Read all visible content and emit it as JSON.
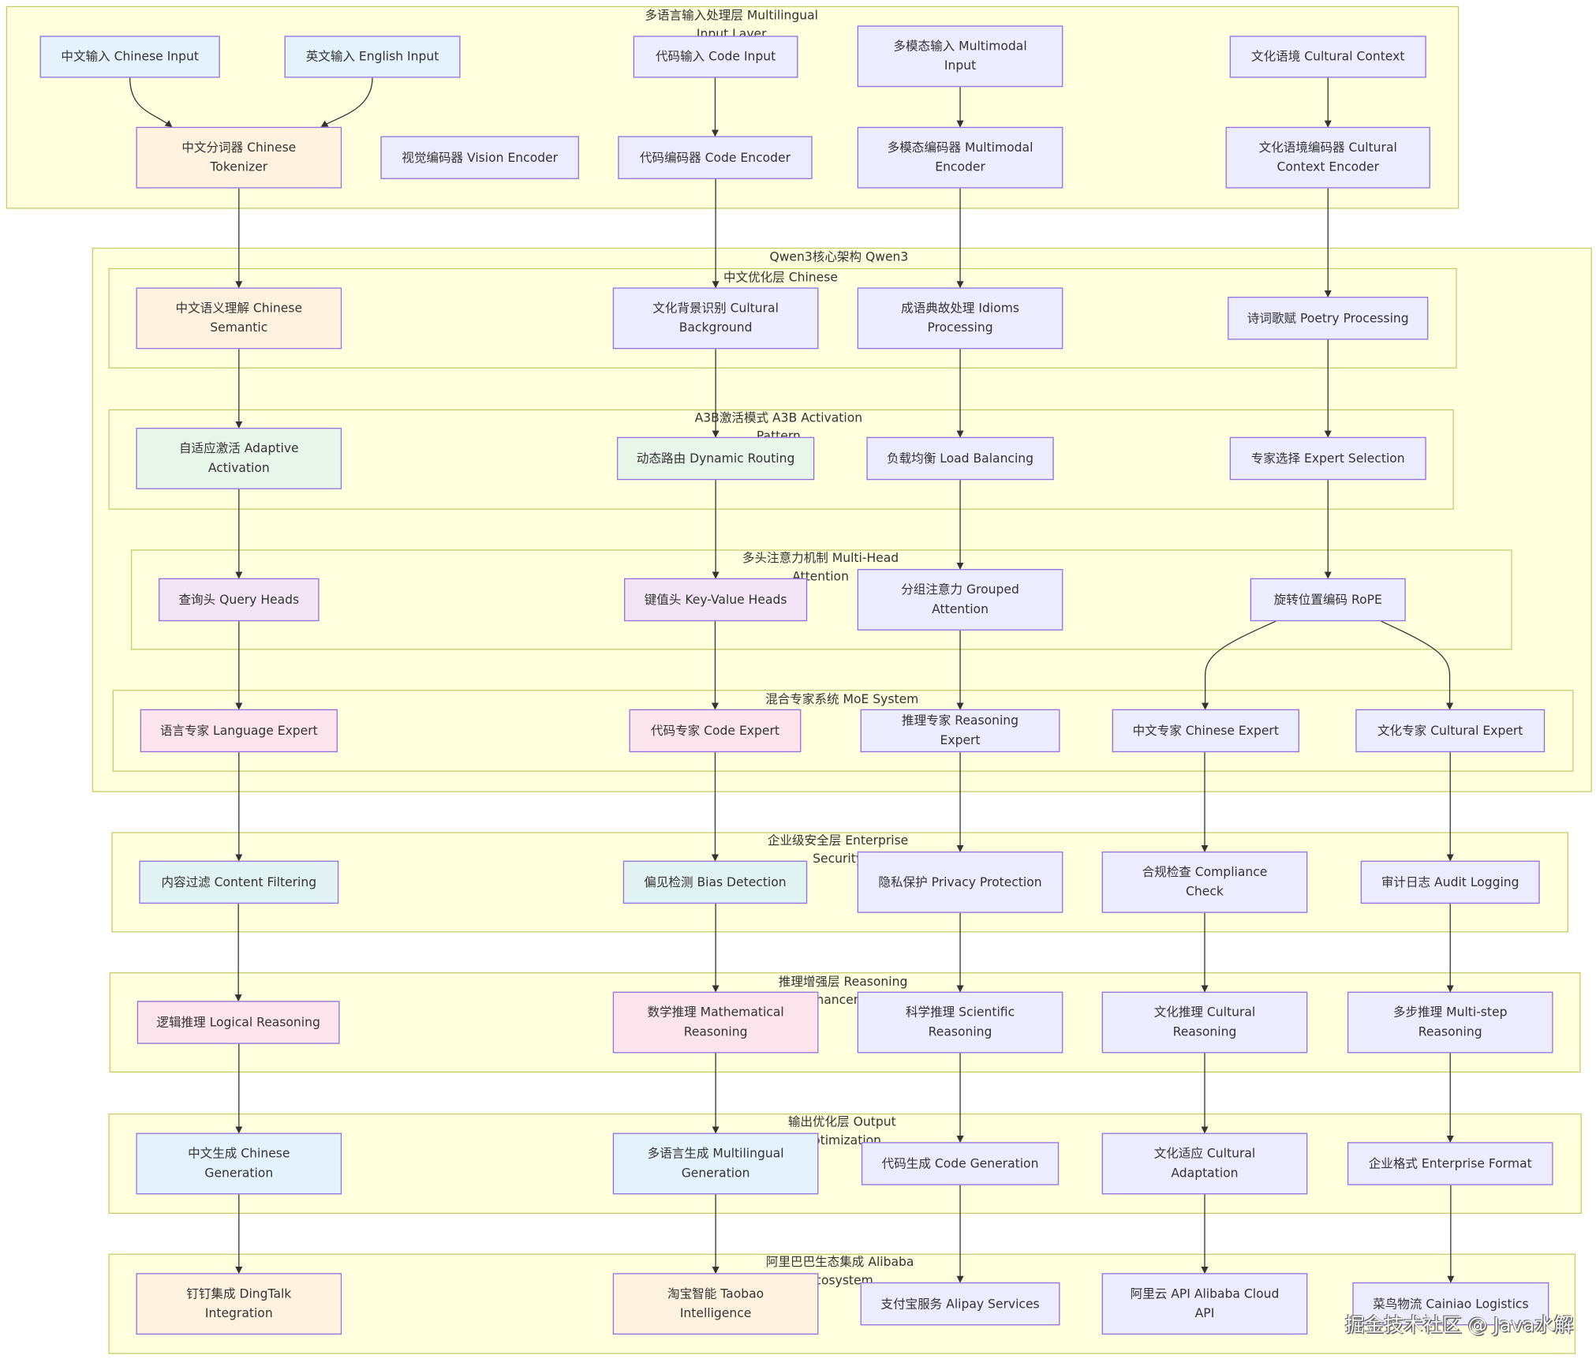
{
  "clusters": [
    {
      "title": "多语言输入处理层 Multilingual Input Layer"
    },
    {
      "title": "Qwen3核心架构 Qwen3"
    },
    {
      "title": "中文优化层 Chinese"
    },
    {
      "title": "A3B激活模式 A3B Activation Pattern"
    },
    {
      "title": "多头注意力机制 Multi-Head Attention"
    },
    {
      "title": "混合专家系统 MoE System"
    },
    {
      "title": "企业级安全层 Enterprise Security"
    },
    {
      "title": "推理增强层 Reasoning Enhancement"
    },
    {
      "title": "输出优化层 Output Optimization"
    },
    {
      "title": "阿里巴巴生态集成 Alibaba Ecosystem"
    }
  ],
  "nodes": [
    {
      "label": "中文输入 Chinese Input",
      "color": "#e3f2fd"
    },
    {
      "label": "英文输入 English Input",
      "color": "#e3f2fd"
    },
    {
      "label": "代码输入 Code Input",
      "color": "#ececff"
    },
    {
      "label": "多模态输入 Multimodal Input",
      "color": "#ececff"
    },
    {
      "label": "文化语境 Cultural Context",
      "color": "#ececff"
    },
    {
      "label": "中文分词器 Chinese Tokenizer",
      "color": "#fff3e0"
    },
    {
      "label": "视觉编码器 Vision Encoder",
      "color": "#ececff"
    },
    {
      "label": "代码编码器 Code Encoder",
      "color": "#ececff"
    },
    {
      "label": "多模态编码器 Multimodal Encoder",
      "color": "#ececff"
    },
    {
      "label": "文化语境编码器 Cultural Context Encoder",
      "color": "#ececff"
    },
    {
      "label": "中文语义理解 Chinese Semantic",
      "color": "#fff3e0"
    },
    {
      "label": "文化背景识别 Cultural Background",
      "color": "#ececff"
    },
    {
      "label": "成语典故处理 Idioms Processing",
      "color": "#ececff"
    },
    {
      "label": "诗词歌赋 Poetry Processing",
      "color": "#ececff"
    },
    {
      "label": "自适应激活 Adaptive Activation",
      "color": "#e8f5e9"
    },
    {
      "label": "动态路由 Dynamic Routing",
      "color": "#e8f5e9"
    },
    {
      "label": "负载均衡 Load Balancing",
      "color": "#ececff"
    },
    {
      "label": "专家选择 Expert Selection",
      "color": "#ececff"
    },
    {
      "label": "查询头 Query Heads",
      "color": "#f3e5f5"
    },
    {
      "label": "键值头 Key-Value Heads",
      "color": "#f3e5f5"
    },
    {
      "label": "分组注意力 Grouped Attention",
      "color": "#ececff"
    },
    {
      "label": "旋转位置编码 RoPE",
      "color": "#ececff"
    },
    {
      "label": "语言专家 Language Expert",
      "color": "#fce4ec"
    },
    {
      "label": "代码专家 Code Expert",
      "color": "#fce4ec"
    },
    {
      "label": "推理专家 Reasoning Expert",
      "color": "#ececff"
    },
    {
      "label": "中文专家 Chinese Expert",
      "color": "#ececff"
    },
    {
      "label": "文化专家 Cultural Expert",
      "color": "#ececff"
    },
    {
      "label": "内容过滤 Content Filtering",
      "color": "#e0f2f1"
    },
    {
      "label": "偏见检测 Bias Detection",
      "color": "#e0f2f1"
    },
    {
      "label": "隐私保护 Privacy Protection",
      "color": "#ececff"
    },
    {
      "label": "合规检查 Compliance Check",
      "color": "#ececff"
    },
    {
      "label": "审计日志 Audit Logging",
      "color": "#ececff"
    },
    {
      "label": "逻辑推理 Logical Reasoning",
      "color": "#fce4ec"
    },
    {
      "label": "数学推理 Mathematical Reasoning",
      "color": "#fce4ec"
    },
    {
      "label": "科学推理 Scientific Reasoning",
      "color": "#ececff"
    },
    {
      "label": "文化推理 Cultural Reasoning",
      "color": "#ececff"
    },
    {
      "label": "多步推理 Multi-step Reasoning",
      "color": "#ececff"
    },
    {
      "label": "中文生成 Chinese Generation",
      "color": "#e3f2fd"
    },
    {
      "label": "多语言生成 Multilingual Generation",
      "color": "#e3f2fd"
    },
    {
      "label": "代码生成 Code Generation",
      "color": "#ececff"
    },
    {
      "label": "文化适应 Cultural Adaptation",
      "color": "#ececff"
    },
    {
      "label": "企业格式 Enterprise Format",
      "color": "#ececff"
    },
    {
      "label": "钉钉集成 DingTalk Integration",
      "color": "#fff3e0"
    },
    {
      "label": "淘宝智能 Taobao Intelligence",
      "color": "#fff3e0"
    },
    {
      "label": "支付宝服务 Alipay Services",
      "color": "#ececff"
    },
    {
      "label": "阿里云 API Alibaba Cloud API",
      "color": "#ececff"
    },
    {
      "label": "菜鸟物流 Cainiao Logistics",
      "color": "#ececff"
    }
  ],
  "watermark": "掘金技术社区 @ Java水解"
}
